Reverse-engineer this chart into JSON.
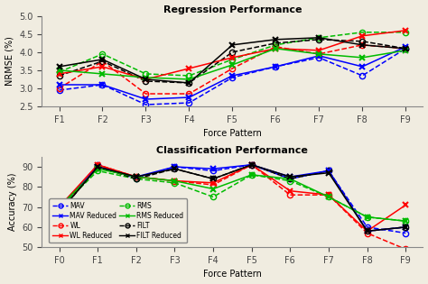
{
  "reg_x_labels": [
    "F1",
    "F2",
    "F3",
    "F4",
    "F5",
    "F6",
    "F7",
    "F8",
    "F9"
  ],
  "cls_x_labels": [
    "F0",
    "F1",
    "F2",
    "F3",
    "F4",
    "F5",
    "F6",
    "F7",
    "F8",
    "F9"
  ],
  "reg_MAV": [
    2.95,
    3.1,
    2.55,
    2.6,
    3.3,
    3.6,
    3.85,
    3.35,
    4.1
  ],
  "reg_WL": [
    3.0,
    3.75,
    2.85,
    2.85,
    3.55,
    4.15,
    3.95,
    4.2,
    4.1
  ],
  "reg_RMS": [
    3.45,
    3.95,
    3.4,
    3.35,
    3.8,
    4.2,
    4.4,
    4.55,
    4.55
  ],
  "reg_FILT": [
    3.35,
    3.75,
    3.2,
    3.15,
    4.0,
    4.25,
    4.35,
    4.3,
    4.1
  ],
  "reg_MAV_red": [
    3.1,
    3.1,
    2.7,
    2.75,
    3.35,
    3.6,
    3.9,
    3.6,
    4.15
  ],
  "reg_WL_red": [
    3.4,
    3.6,
    3.25,
    3.55,
    3.85,
    4.1,
    4.05,
    4.45,
    4.6
  ],
  "reg_RMS_red": [
    3.5,
    3.4,
    3.3,
    3.25,
    3.65,
    4.1,
    3.95,
    3.85,
    4.05
  ],
  "reg_FILT_red": [
    3.6,
    3.8,
    3.25,
    3.15,
    4.2,
    4.35,
    4.4,
    4.2,
    4.1
  ],
  "cls_MAV": [
    69,
    91,
    84,
    90,
    88,
    91,
    84,
    88,
    60,
    57
  ],
  "cls_WL": [
    68,
    91,
    85,
    83,
    81,
    91,
    76,
    76,
    57,
    49
  ],
  "cls_RMS": [
    69,
    88,
    84,
    82,
    75,
    86,
    83,
    75,
    65,
    63
  ],
  "cls_FILT": [
    67,
    90,
    84,
    89,
    84,
    91,
    84,
    88,
    58,
    60
  ],
  "cls_MAV_red": [
    70,
    90,
    85,
    90,
    89,
    91,
    85,
    88,
    58,
    60
  ],
  "cls_WL_red": [
    70,
    91,
    85,
    83,
    82,
    91,
    78,
    76,
    58,
    71
  ],
  "cls_RMS_red": [
    70,
    89,
    85,
    83,
    79,
    86,
    84,
    75,
    65,
    63
  ],
  "cls_FILT_red": [
    67,
    90,
    85,
    89,
    84,
    91,
    85,
    87,
    58,
    60
  ],
  "color_blue": "#0000ff",
  "color_red": "#ff0000",
  "color_green": "#00bb00",
  "color_black": "#000000",
  "reg_ylim": [
    2.5,
    5.0
  ],
  "reg_yticks": [
    2.5,
    3.0,
    3.5,
    4.0,
    4.5,
    5.0
  ],
  "cls_ylim": [
    50,
    95
  ],
  "cls_yticks": [
    50,
    60,
    70,
    80,
    90
  ],
  "bg_color": "#f0ece0"
}
